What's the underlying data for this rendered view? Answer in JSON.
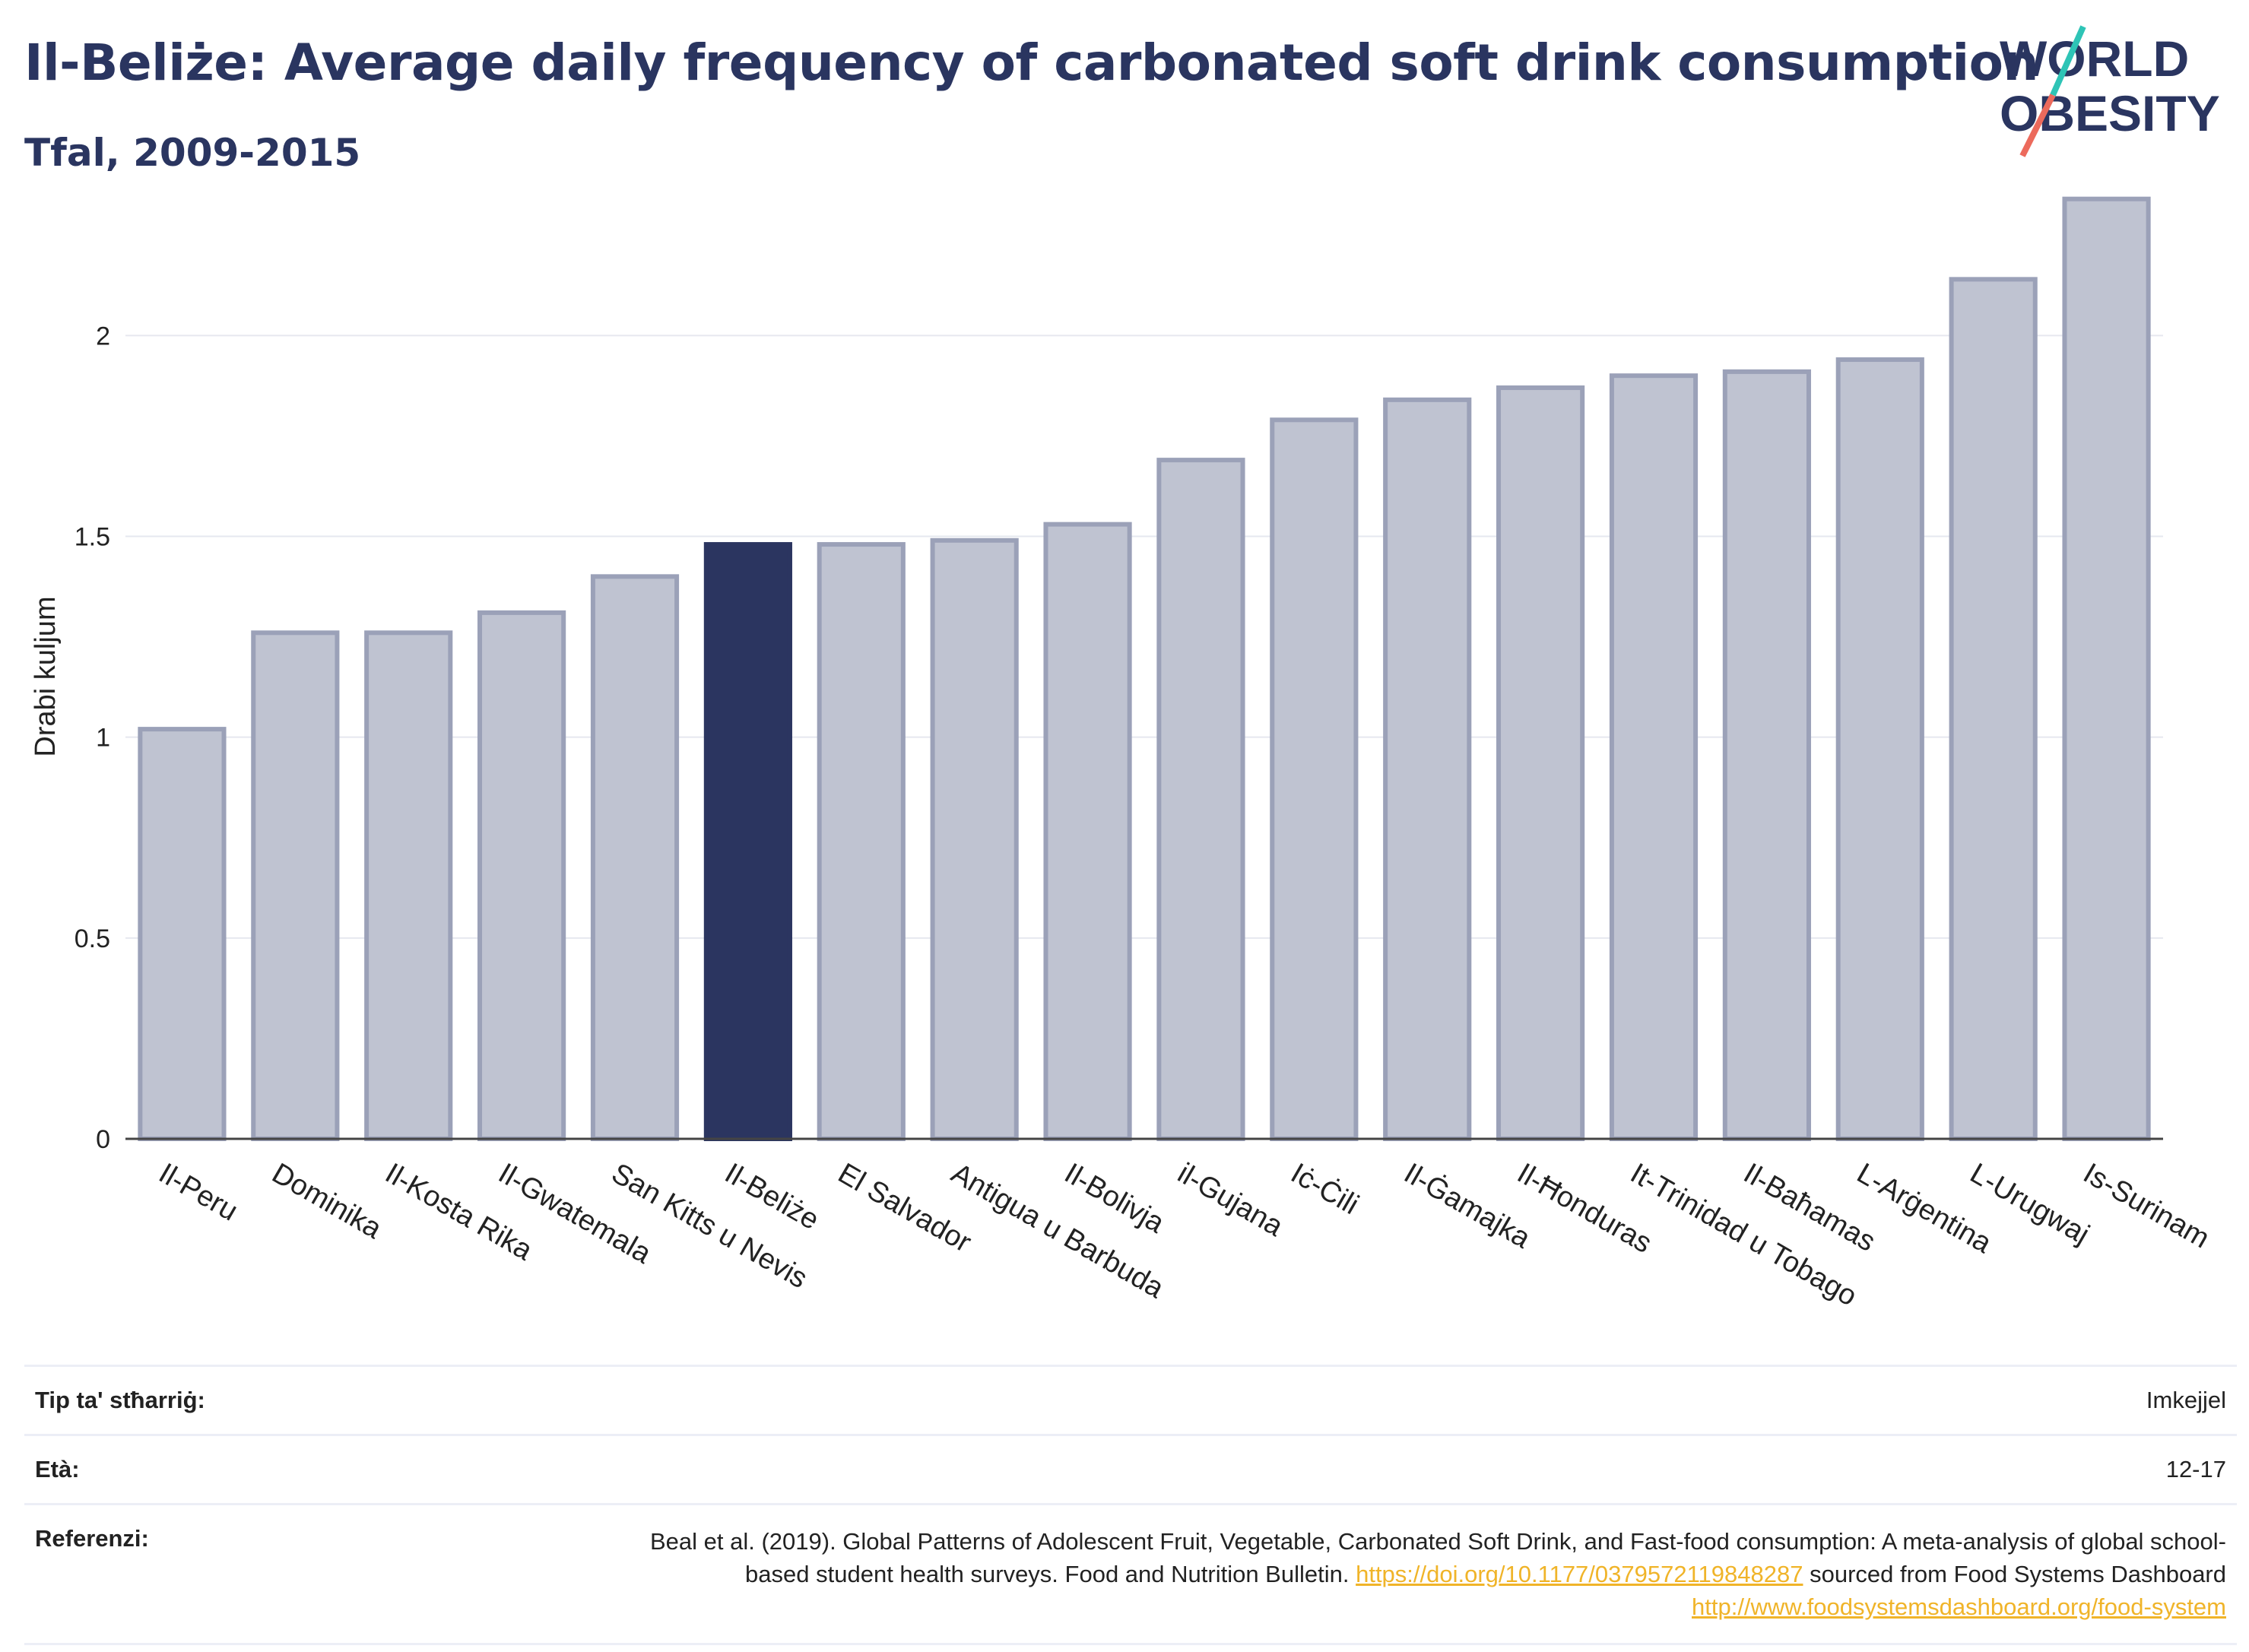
{
  "header": {
    "title": "Il-Beliże: Average daily frequency of carbonated soft drink consumption",
    "subtitle": "Tfal, 2009-2015",
    "logo_line1": "WORLD",
    "logo_line2": "OBESITY"
  },
  "colors": {
    "highlight": "#2b3560",
    "bar_fill": "#bfc3d1",
    "bar_stroke": "#9ba1b8",
    "accent_teal": "#2ec4b6",
    "accent_coral": "#ec6a5c",
    "link": "#f0b429"
  },
  "chart_data": {
    "type": "bar",
    "categories": [
      "Il-Peru",
      "Dominika",
      "Il-Kosta Rika",
      "Il-Gwatemala",
      "San Kitts u Nevis",
      "Il-Beliże",
      "El Salvador",
      "Antigua u Barbuda",
      "Il-Bolivja",
      "il-Gujana",
      "Iċ-Ċili",
      "Il-Ġamajka",
      "Il-Ħonduras",
      "It-Trinidad u Tobago",
      "Il-Baħamas",
      "L-Arġentina",
      "L-Urugwaj",
      "Is-Surinam"
    ],
    "values": [
      1.02,
      1.26,
      1.26,
      1.31,
      1.4,
      1.48,
      1.48,
      1.49,
      1.53,
      1.69,
      1.79,
      1.84,
      1.87,
      1.9,
      1.91,
      1.94,
      2.14,
      2.34
    ],
    "highlight_index": 5,
    "title": "",
    "xlabel": "",
    "ylabel": "Drabi kuljum",
    "ylim": [
      0,
      2.4
    ],
    "yticks": [
      0,
      0.5,
      1,
      1.5,
      2
    ],
    "ytick_labels": [
      "0",
      "0.5",
      "1",
      "1.5",
      "2"
    ],
    "grid": true,
    "legend": "none"
  },
  "table": {
    "survey_type_label": "Tip ta' stħarriġ:",
    "survey_type_value": "Imkejjel",
    "age_label": "Età:",
    "age_value": "12-17",
    "references_label": "Referenzi:",
    "ref_text_1": "Beal et al. (2019). Global Patterns of Adolescent Fruit, Vegetable, Carbonated Soft Drink, and Fast-food consumption: A meta-analysis of global school-based student health surveys. Food and Nutrition Bulletin.",
    "ref_link_1": "https://doi.org/10.1177/0379572119848287",
    "ref_text_2": "sourced from Food Systems Dashboard",
    "ref_link_2": "http://www.foodsystemsdashboard.org/food-system"
  }
}
